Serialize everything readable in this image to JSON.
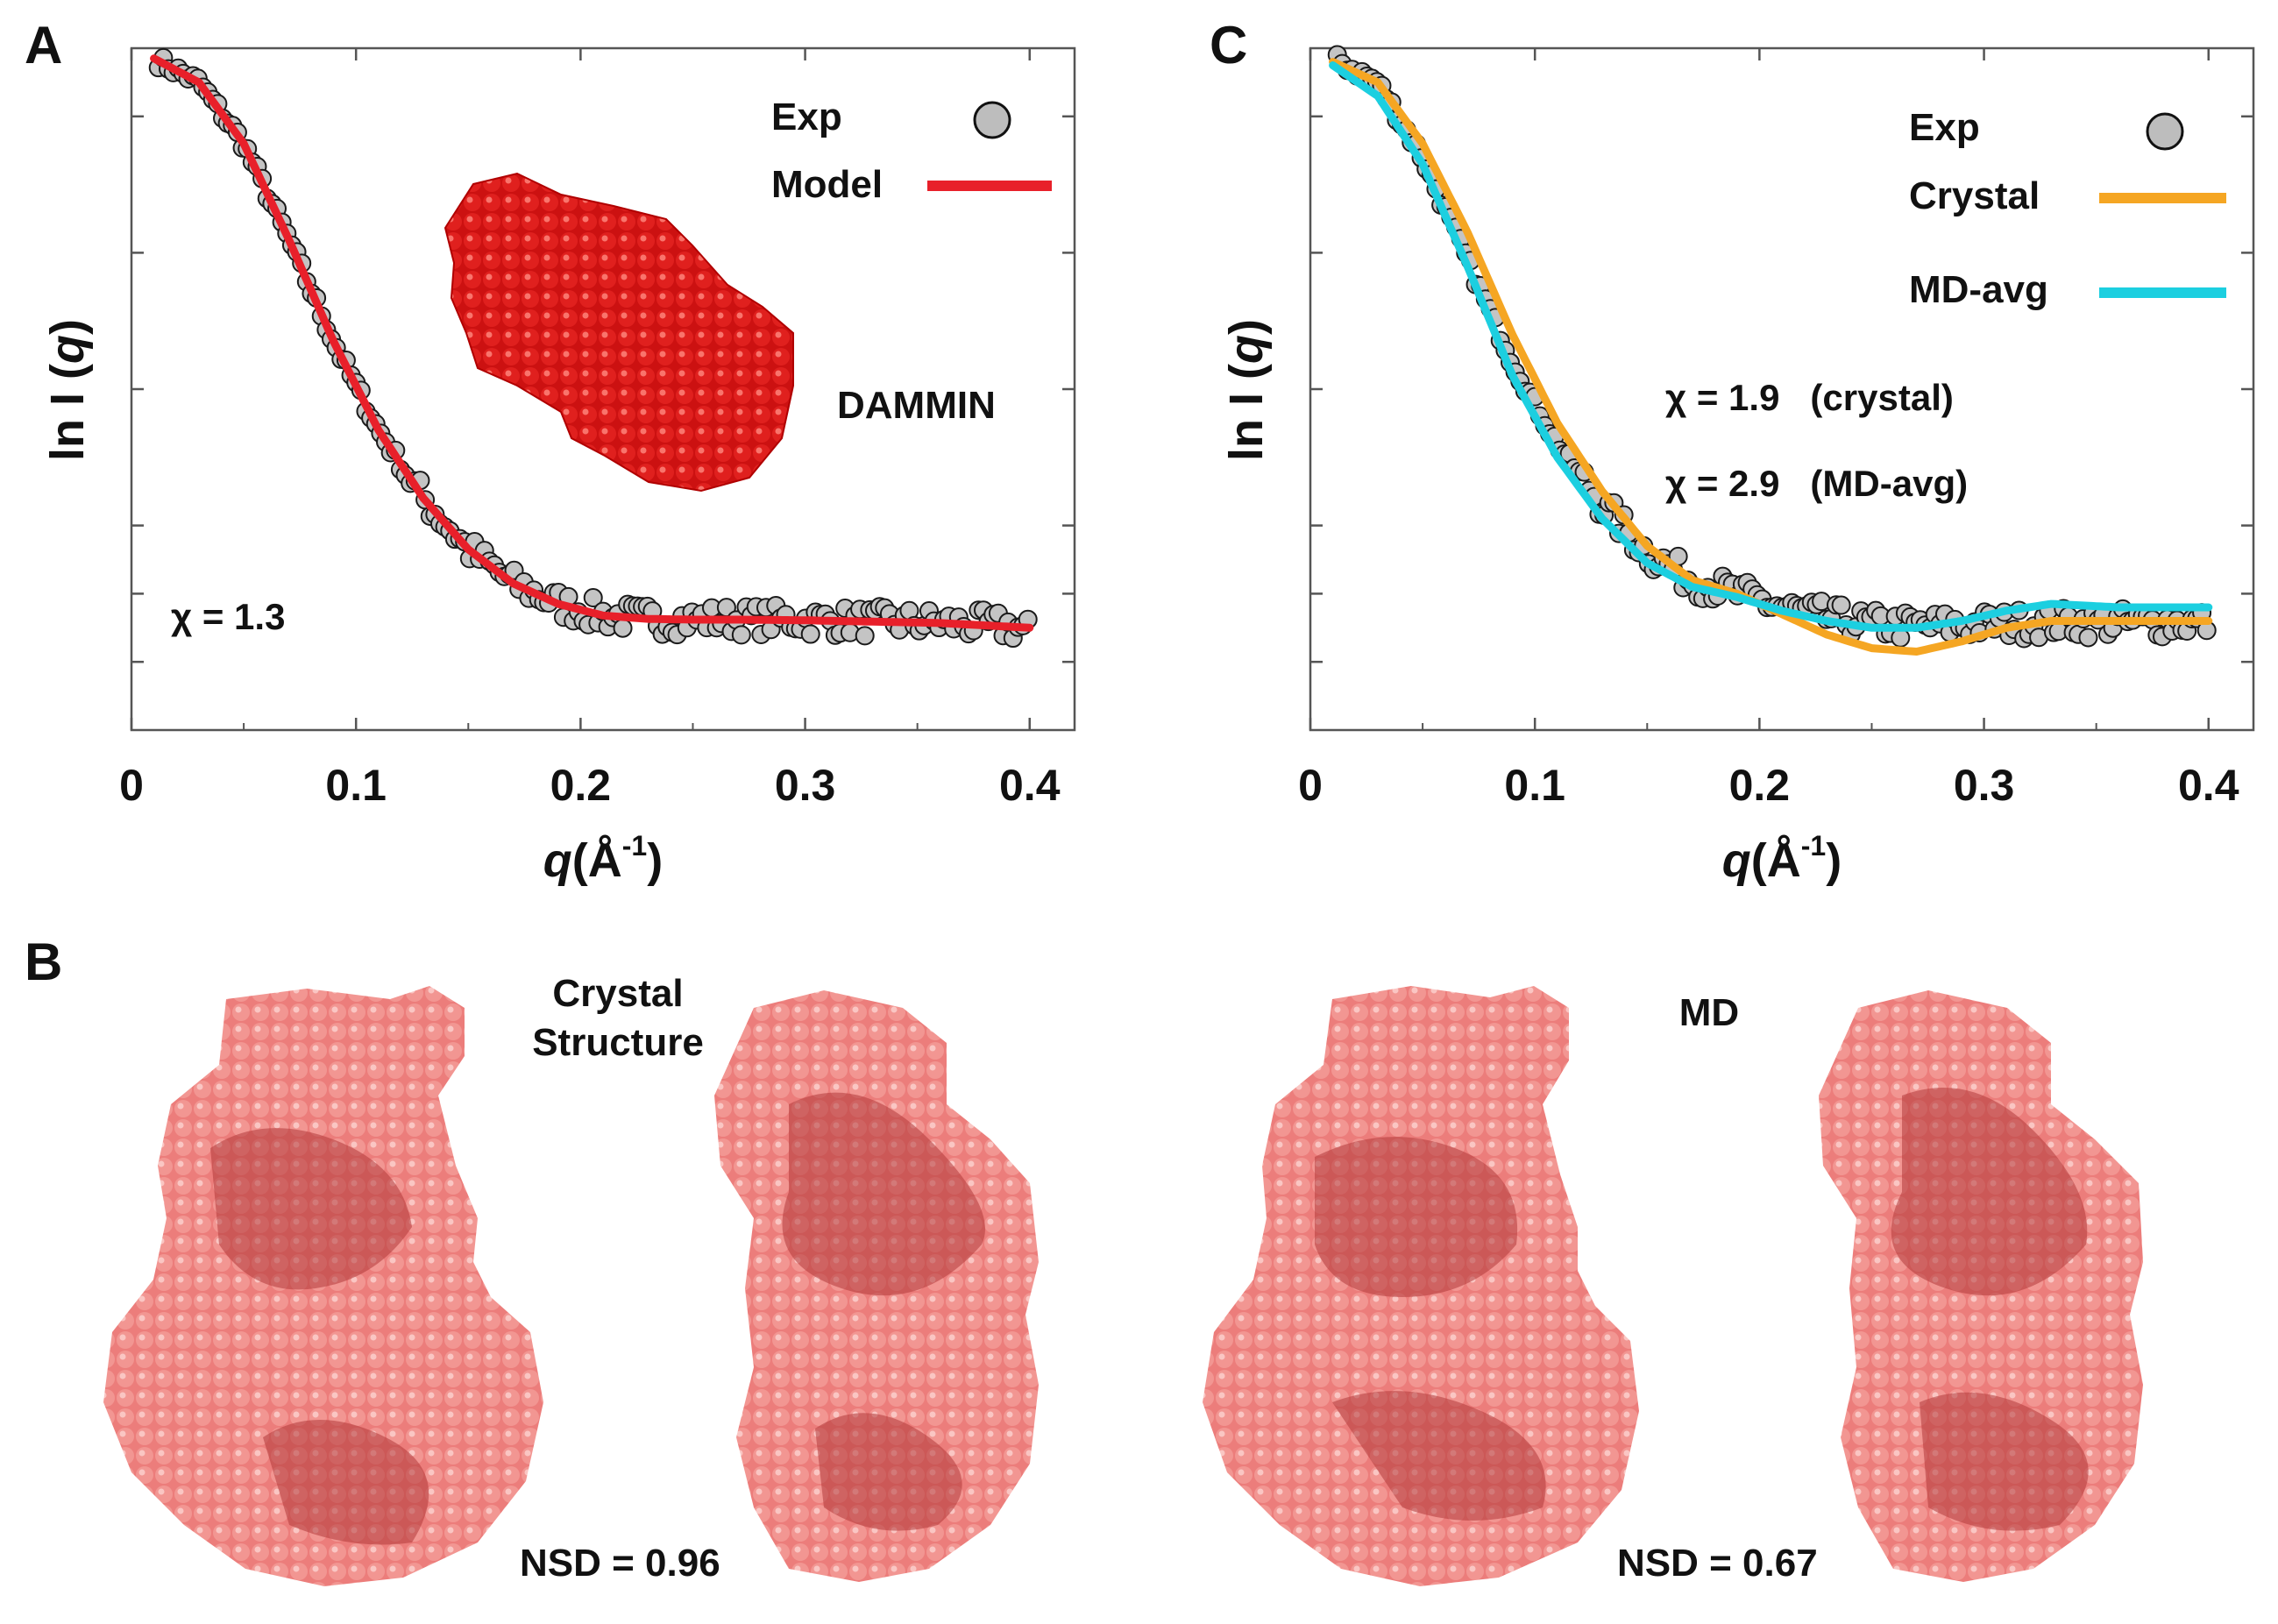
{
  "panels": {
    "a": "A",
    "b": "B",
    "c": "C"
  },
  "chart_data": [
    {
      "type": "scatter",
      "panel": "A",
      "xlabel_q": "q",
      "xlabel_unit": "(Å",
      "xlabel_exp": "-1",
      "xlabel_close": ")",
      "ylabel_pre": "ln I (",
      "ylabel_q": "q",
      "ylabel_post": ")",
      "xlim": [
        0,
        0.42
      ],
      "ylim": [
        0,
        1
      ],
      "xticks": [
        0,
        0.1,
        0.2,
        0.3,
        0.4
      ],
      "xtick_labels": [
        "0",
        "0.1",
        "0.2",
        "0.3",
        "0.4"
      ],
      "yticks": [
        0.1,
        0.2,
        0.3,
        0.5,
        0.7,
        0.9
      ],
      "legend": [
        {
          "label": "Exp",
          "kind": "marker"
        },
        {
          "label": "Model",
          "kind": "line",
          "color": "#e8202a"
        }
      ],
      "annotations": {
        "chi": "χ = 1.3",
        "model_name": "DAMMIN"
      },
      "exp_curve": {
        "x": [
          0.01,
          0.03,
          0.05,
          0.07,
          0.09,
          0.11,
          0.13,
          0.15,
          0.17,
          0.19,
          0.21,
          0.23,
          0.25,
          0.27,
          0.3,
          0.33,
          0.36,
          0.4
        ],
        "y": [
          0.985,
          0.95,
          0.86,
          0.72,
          0.57,
          0.44,
          0.34,
          0.265,
          0.215,
          0.185,
          0.168,
          0.163,
          0.162,
          0.162,
          0.161,
          0.159,
          0.157,
          0.15
        ]
      },
      "series": [
        {
          "name": "Model",
          "color": "#e8202a",
          "x": [
            0.01,
            0.03,
            0.05,
            0.07,
            0.09,
            0.11,
            0.13,
            0.15,
            0.17,
            0.19,
            0.21,
            0.23,
            0.25,
            0.27,
            0.3,
            0.33,
            0.36,
            0.4
          ],
          "y": [
            0.985,
            0.95,
            0.86,
            0.72,
            0.57,
            0.44,
            0.34,
            0.265,
            0.215,
            0.185,
            0.168,
            0.163,
            0.162,
            0.162,
            0.161,
            0.159,
            0.157,
            0.15
          ]
        }
      ]
    },
    {
      "type": "scatter",
      "panel": "C",
      "xlabel_q": "q",
      "xlabel_unit": "(Å",
      "xlabel_exp": "-1",
      "xlabel_close": ")",
      "ylabel_pre": "ln I (",
      "ylabel_q": "q",
      "ylabel_post": ")",
      "xlim": [
        0,
        0.42
      ],
      "ylim": [
        0,
        1
      ],
      "xticks": [
        0,
        0.1,
        0.2,
        0.3,
        0.4
      ],
      "xtick_labels": [
        "0",
        "0.1",
        "0.2",
        "0.3",
        "0.4"
      ],
      "yticks": [
        0.1,
        0.2,
        0.3,
        0.5,
        0.7,
        0.9
      ],
      "legend": [
        {
          "label": "Exp",
          "kind": "marker"
        },
        {
          "label": "Crystal",
          "kind": "line",
          "color": "#f5a623"
        },
        {
          "label": "MD-avg",
          "kind": "line",
          "color": "#1ccfe0"
        }
      ],
      "annotations": {
        "chi_crystal": "χ = 1.9   (crystal)",
        "chi_md": "χ = 2.9   (MD-avg)"
      },
      "exp_curve": {
        "x": [
          0.01,
          0.03,
          0.05,
          0.07,
          0.09,
          0.11,
          0.13,
          0.15,
          0.17,
          0.19,
          0.21,
          0.23,
          0.25,
          0.27,
          0.3,
          0.33,
          0.36,
          0.4
        ],
        "y": [
          0.985,
          0.95,
          0.84,
          0.69,
          0.54,
          0.42,
          0.33,
          0.26,
          0.22,
          0.2,
          0.18,
          0.165,
          0.155,
          0.152,
          0.155,
          0.158,
          0.157,
          0.158
        ]
      },
      "series": [
        {
          "name": "Crystal",
          "color": "#f5a623",
          "x": [
            0.01,
            0.03,
            0.05,
            0.07,
            0.09,
            0.11,
            0.13,
            0.15,
            0.17,
            0.19,
            0.21,
            0.23,
            0.25,
            0.27,
            0.29,
            0.31,
            0.33,
            0.36,
            0.4
          ],
          "y": [
            0.98,
            0.95,
            0.86,
            0.73,
            0.58,
            0.45,
            0.35,
            0.27,
            0.22,
            0.2,
            0.17,
            0.14,
            0.12,
            0.115,
            0.13,
            0.15,
            0.16,
            0.16,
            0.16
          ]
        },
        {
          "name": "MD-avg",
          "color": "#1ccfe0",
          "x": [
            0.01,
            0.03,
            0.05,
            0.07,
            0.09,
            0.11,
            0.13,
            0.15,
            0.17,
            0.19,
            0.21,
            0.23,
            0.25,
            0.27,
            0.29,
            0.31,
            0.33,
            0.36,
            0.4
          ],
          "y": [
            0.975,
            0.93,
            0.83,
            0.68,
            0.52,
            0.4,
            0.31,
            0.245,
            0.21,
            0.195,
            0.175,
            0.16,
            0.15,
            0.15,
            0.16,
            0.175,
            0.185,
            0.18,
            0.18
          ]
        }
      ]
    }
  ],
  "panel_b": {
    "label_crystal": [
      "Crystal",
      "Structure"
    ],
    "label_md": "MD",
    "nsd_crystal": "NSD = 0.96",
    "nsd_md": "NSD = 0.67"
  },
  "colors": {
    "model": "#e8202a",
    "crystal": "#f5a623",
    "md": "#1ccfe0",
    "bead": "#e05a5a"
  }
}
